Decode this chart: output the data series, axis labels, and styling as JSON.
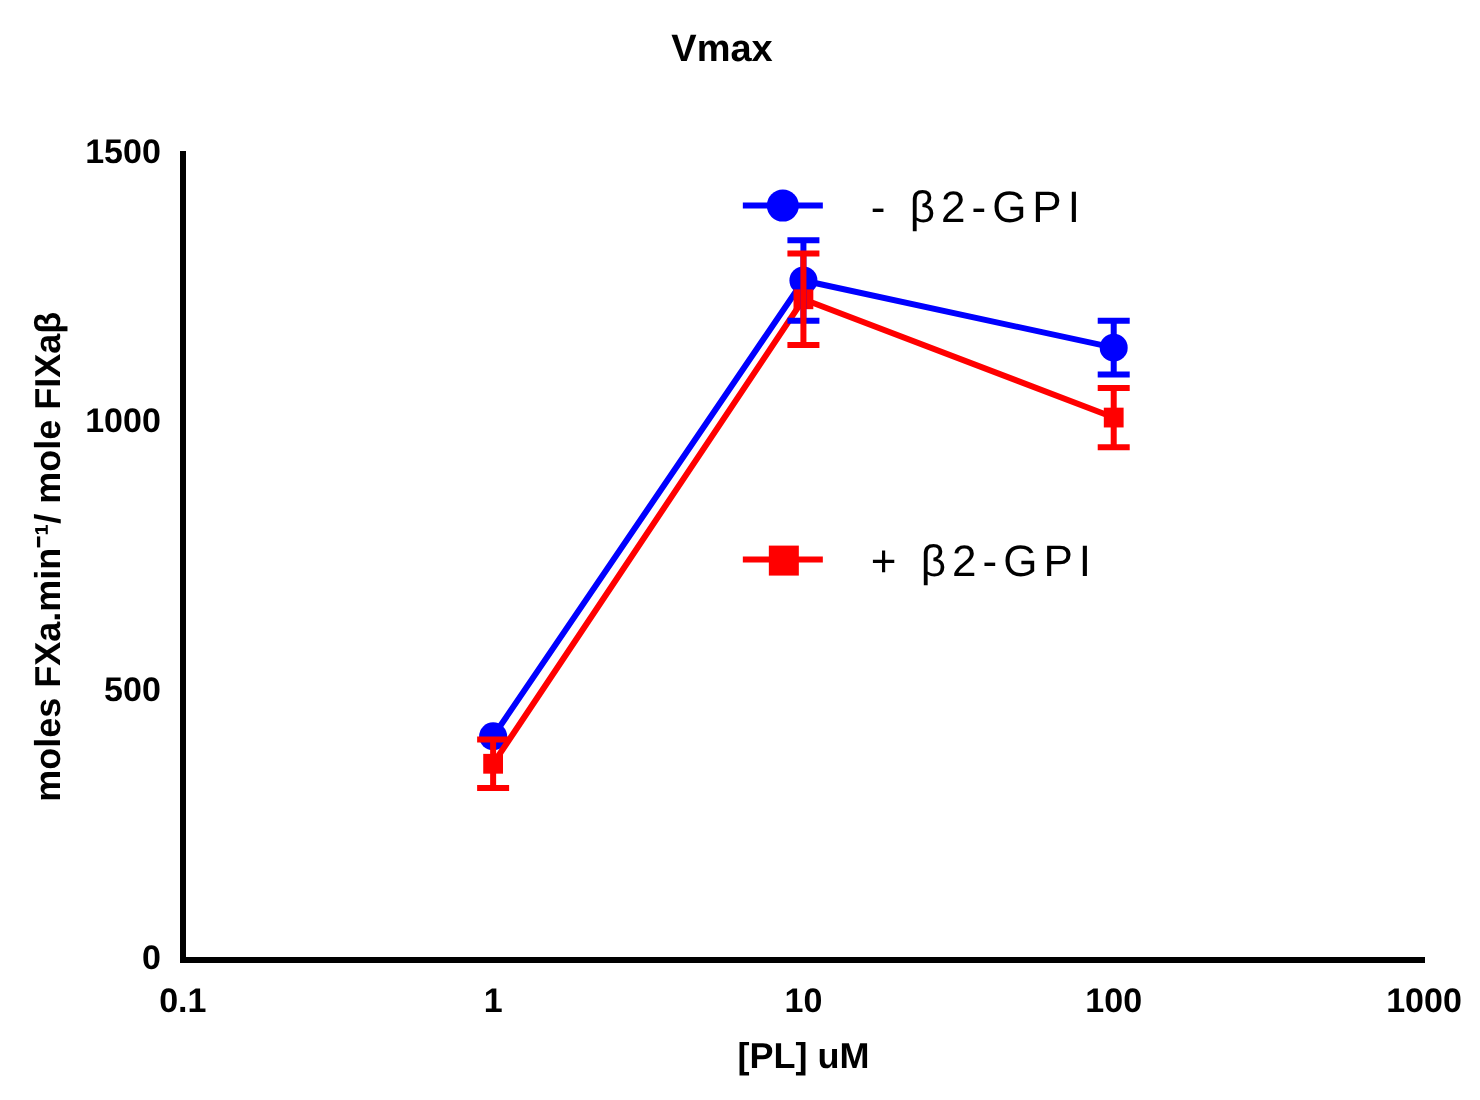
{
  "chart_data": {
    "type": "line",
    "title": "Vmax",
    "xlabel": "[PL] uM",
    "ylabel": "moles FXa.min⁻¹/ mole FIXaβ",
    "x": [
      1,
      10,
      100
    ],
    "log": "x",
    "xlim": [
      0.1,
      1000
    ],
    "xticks": [
      0.1,
      1,
      10,
      100,
      1000
    ],
    "ylim": [
      0,
      1500
    ],
    "yticks": [
      0,
      500,
      1000,
      1500
    ],
    "grid": false,
    "legend": "top right",
    "line_style": "solid",
    "series": [
      {
        "name": "- β2-GPI",
        "color": "#0000ff",
        "marker": "circle",
        "values": [
          416,
          1264,
          1139
        ],
        "errors": [
          null,
          75,
          50
        ]
      },
      {
        "name": "+ β2-GPI",
        "color": "#ff0000",
        "marker": "square",
        "values": [
          365,
          1229,
          1009
        ],
        "errors": [
          45,
          85,
          55
        ]
      }
    ]
  }
}
